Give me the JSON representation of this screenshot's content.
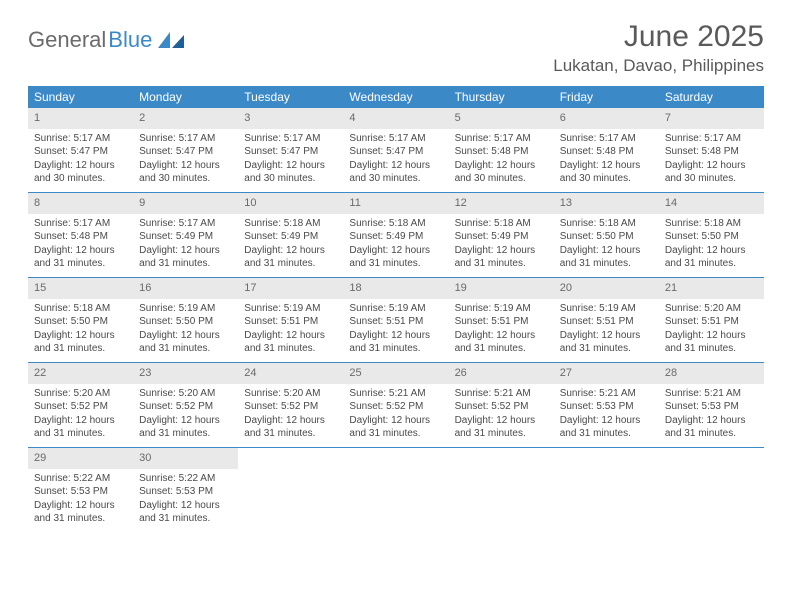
{
  "brand": {
    "part1": "General",
    "part2": "Blue"
  },
  "title": "June 2025",
  "location": "Lukatan, Davao, Philippines",
  "colors": {
    "accent": "#3b89c7",
    "dow_text": "#ffffff",
    "daynum_bg": "#e9e9e9",
    "text": "#4a4a4a",
    "header_text": "#5a5a5a"
  },
  "days_of_week": [
    "Sunday",
    "Monday",
    "Tuesday",
    "Wednesday",
    "Thursday",
    "Friday",
    "Saturday"
  ],
  "weeks": [
    [
      {
        "n": "1",
        "sr": "5:17 AM",
        "ss": "5:47 PM",
        "dl": "12 hours and 30 minutes."
      },
      {
        "n": "2",
        "sr": "5:17 AM",
        "ss": "5:47 PM",
        "dl": "12 hours and 30 minutes."
      },
      {
        "n": "3",
        "sr": "5:17 AM",
        "ss": "5:47 PM",
        "dl": "12 hours and 30 minutes."
      },
      {
        "n": "4",
        "sr": "5:17 AM",
        "ss": "5:47 PM",
        "dl": "12 hours and 30 minutes."
      },
      {
        "n": "5",
        "sr": "5:17 AM",
        "ss": "5:48 PM",
        "dl": "12 hours and 30 minutes."
      },
      {
        "n": "6",
        "sr": "5:17 AM",
        "ss": "5:48 PM",
        "dl": "12 hours and 30 minutes."
      },
      {
        "n": "7",
        "sr": "5:17 AM",
        "ss": "5:48 PM",
        "dl": "12 hours and 30 minutes."
      }
    ],
    [
      {
        "n": "8",
        "sr": "5:17 AM",
        "ss": "5:48 PM",
        "dl": "12 hours and 31 minutes."
      },
      {
        "n": "9",
        "sr": "5:17 AM",
        "ss": "5:49 PM",
        "dl": "12 hours and 31 minutes."
      },
      {
        "n": "10",
        "sr": "5:18 AM",
        "ss": "5:49 PM",
        "dl": "12 hours and 31 minutes."
      },
      {
        "n": "11",
        "sr": "5:18 AM",
        "ss": "5:49 PM",
        "dl": "12 hours and 31 minutes."
      },
      {
        "n": "12",
        "sr": "5:18 AM",
        "ss": "5:49 PM",
        "dl": "12 hours and 31 minutes."
      },
      {
        "n": "13",
        "sr": "5:18 AM",
        "ss": "5:50 PM",
        "dl": "12 hours and 31 minutes."
      },
      {
        "n": "14",
        "sr": "5:18 AM",
        "ss": "5:50 PM",
        "dl": "12 hours and 31 minutes."
      }
    ],
    [
      {
        "n": "15",
        "sr": "5:18 AM",
        "ss": "5:50 PM",
        "dl": "12 hours and 31 minutes."
      },
      {
        "n": "16",
        "sr": "5:19 AM",
        "ss": "5:50 PM",
        "dl": "12 hours and 31 minutes."
      },
      {
        "n": "17",
        "sr": "5:19 AM",
        "ss": "5:51 PM",
        "dl": "12 hours and 31 minutes."
      },
      {
        "n": "18",
        "sr": "5:19 AM",
        "ss": "5:51 PM",
        "dl": "12 hours and 31 minutes."
      },
      {
        "n": "19",
        "sr": "5:19 AM",
        "ss": "5:51 PM",
        "dl": "12 hours and 31 minutes."
      },
      {
        "n": "20",
        "sr": "5:19 AM",
        "ss": "5:51 PM",
        "dl": "12 hours and 31 minutes."
      },
      {
        "n": "21",
        "sr": "5:20 AM",
        "ss": "5:51 PM",
        "dl": "12 hours and 31 minutes."
      }
    ],
    [
      {
        "n": "22",
        "sr": "5:20 AM",
        "ss": "5:52 PM",
        "dl": "12 hours and 31 minutes."
      },
      {
        "n": "23",
        "sr": "5:20 AM",
        "ss": "5:52 PM",
        "dl": "12 hours and 31 minutes."
      },
      {
        "n": "24",
        "sr": "5:20 AM",
        "ss": "5:52 PM",
        "dl": "12 hours and 31 minutes."
      },
      {
        "n": "25",
        "sr": "5:21 AM",
        "ss": "5:52 PM",
        "dl": "12 hours and 31 minutes."
      },
      {
        "n": "26",
        "sr": "5:21 AM",
        "ss": "5:52 PM",
        "dl": "12 hours and 31 minutes."
      },
      {
        "n": "27",
        "sr": "5:21 AM",
        "ss": "5:53 PM",
        "dl": "12 hours and 31 minutes."
      },
      {
        "n": "28",
        "sr": "5:21 AM",
        "ss": "5:53 PM",
        "dl": "12 hours and 31 minutes."
      }
    ],
    [
      {
        "n": "29",
        "sr": "5:22 AM",
        "ss": "5:53 PM",
        "dl": "12 hours and 31 minutes."
      },
      {
        "n": "30",
        "sr": "5:22 AM",
        "ss": "5:53 PM",
        "dl": "12 hours and 31 minutes."
      },
      null,
      null,
      null,
      null,
      null
    ]
  ],
  "labels": {
    "sunrise": "Sunrise:",
    "sunset": "Sunset:",
    "daylight": "Daylight:"
  }
}
